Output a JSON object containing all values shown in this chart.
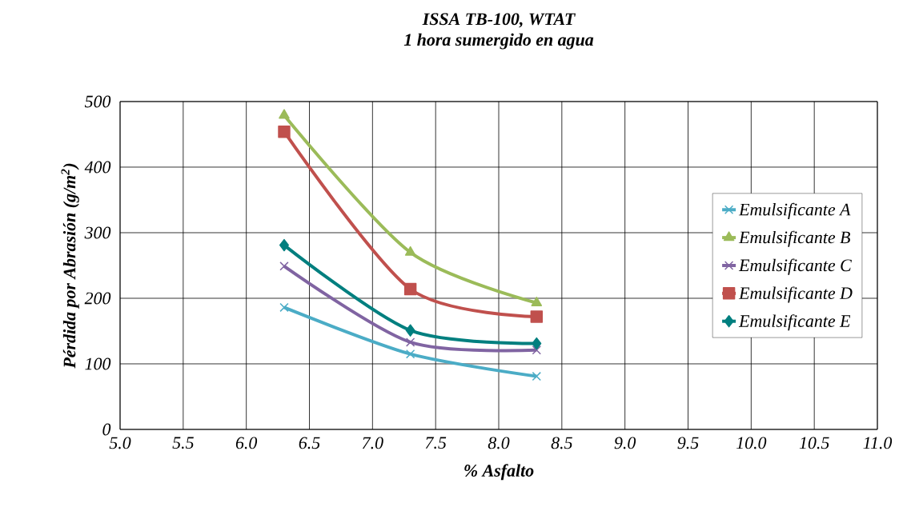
{
  "chart_data": {
    "type": "line",
    "title": "ISSA TB-100, WTAT",
    "subtitle": "1 hora sumergido en agua",
    "xlabel": "% Asfalto",
    "ylabel": "Pérdida por Abrasión (g/m$^{2}$)",
    "x": [
      6.3,
      7.3,
      8.3
    ],
    "series": [
      {
        "name": "Emulsificante A",
        "color": "#4bacc6",
        "marker": "cross",
        "values": [
          186,
          115,
          81
        ]
      },
      {
        "name": "Emulsificante B",
        "color": "#9bbb59",
        "marker": "triangle",
        "values": [
          479,
          270,
          193
        ]
      },
      {
        "name": "Emulsificante C",
        "color": "#8064a2",
        "marker": "cross",
        "values": [
          249,
          133,
          121
        ]
      },
      {
        "name": "Emulsificante D",
        "color": "#c0504d",
        "marker": "square",
        "values": [
          454,
          214,
          172
        ]
      },
      {
        "name": "Emulsificante E",
        "color": "#007f7f",
        "marker": "diamond",
        "values": [
          281,
          151,
          131
        ]
      }
    ],
    "xlim": [
      5.0,
      11.0
    ],
    "ylim": [
      0,
      500
    ],
    "xticks": [
      {
        "value": 5.0,
        "label": "5.0"
      },
      {
        "value": 5.5,
        "label": "5.5"
      },
      {
        "value": 6.0,
        "label": "6.0"
      },
      {
        "value": 6.5,
        "label": "6.5"
      },
      {
        "value": 7.0,
        "label": "7.0"
      },
      {
        "value": 7.5,
        "label": "7.5"
      },
      {
        "value": 8.0,
        "label": "8.0"
      },
      {
        "value": 8.5,
        "label": "8.5"
      },
      {
        "value": 9.0,
        "label": "9.0"
      },
      {
        "value": 9.5,
        "label": "9.5"
      },
      {
        "value": 10.0,
        "label": "10.0"
      },
      {
        "value": 10.5,
        "label": "10.5"
      },
      {
        "value": 11.0,
        "label": "11.0"
      }
    ],
    "yticks": [
      0,
      100,
      200,
      300,
      400,
      500
    ],
    "grid": true,
    "legend": "right",
    "line_style": "solid"
  }
}
